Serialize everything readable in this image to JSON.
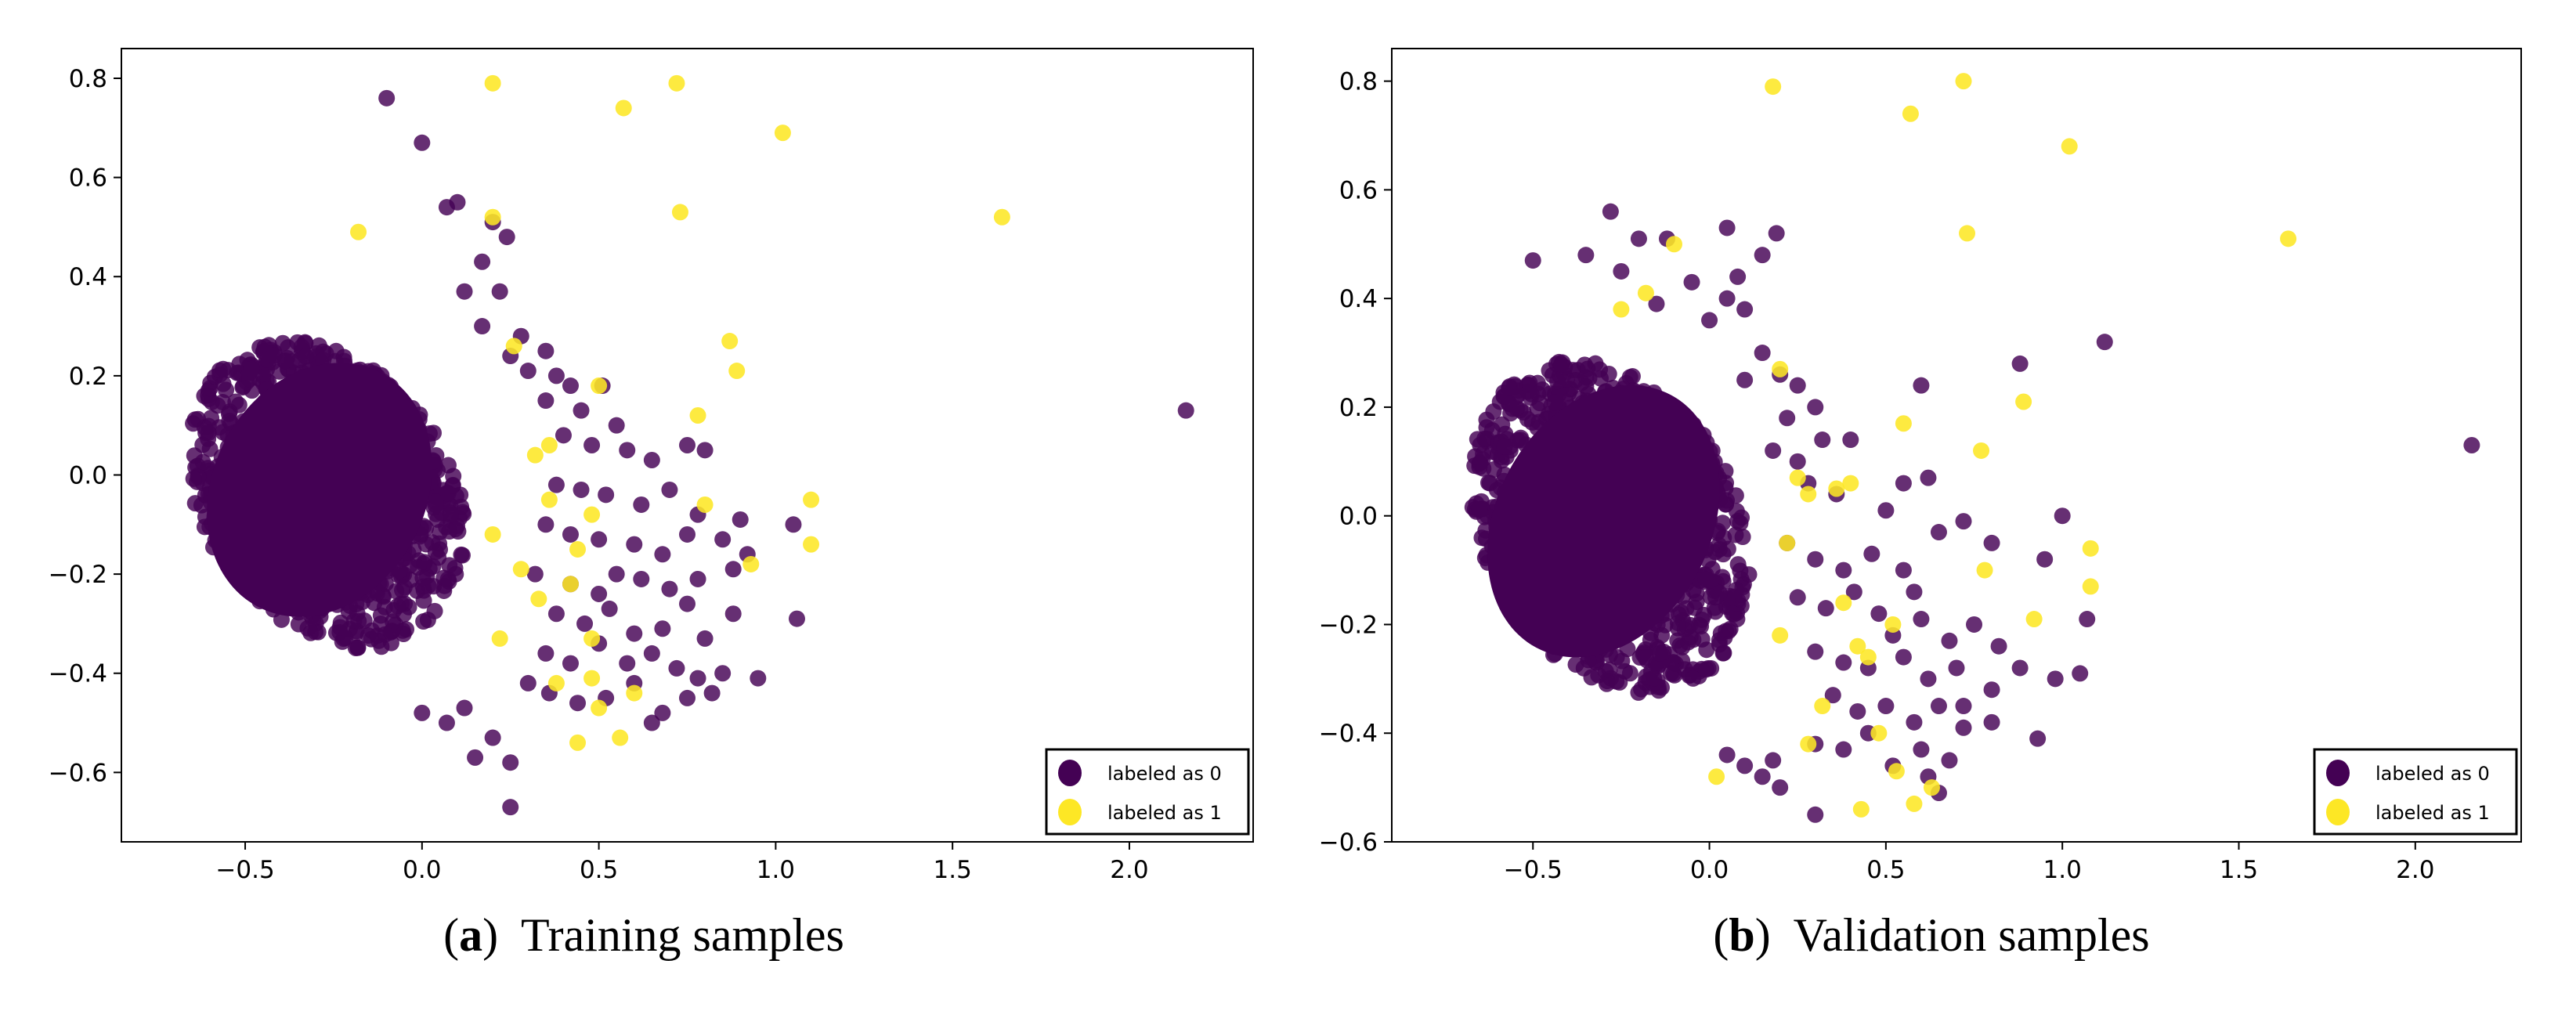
{
  "chart_data": [
    {
      "type": "scatter",
      "caption_label": "a",
      "caption_text": "Training samples",
      "xlim": [
        -0.85,
        2.35
      ],
      "ylim": [
        -0.74,
        0.86
      ],
      "xticks": [
        -0.5,
        0.0,
        0.5,
        1.0,
        1.5,
        2.0
      ],
      "yticks": [
        -0.6,
        -0.4,
        -0.2,
        0.0,
        0.2,
        0.4,
        0.6,
        0.8
      ],
      "tick_labels_x": [
        "−0.5",
        "0.0",
        "0.5",
        "1.0",
        "1.5",
        "2.0"
      ],
      "tick_labels_y": [
        "−0.6",
        "−0.4",
        "−0.2",
        "0.0",
        "0.2",
        "0.4",
        "0.6",
        "0.8"
      ],
      "legend_position": "lower-right",
      "series": [
        {
          "name": "labeled as 0",
          "color": "#440154",
          "cluster": {
            "center": [
              -0.27,
              -0.04
            ],
            "extent_x": [
              -0.75,
              0.22
            ],
            "extent_y": [
              -0.48,
              0.38
            ]
          },
          "points": [
            [
              -0.1,
              0.76
            ],
            [
              0.0,
              0.67
            ],
            [
              0.1,
              0.55
            ],
            [
              0.07,
              0.54
            ],
            [
              0.2,
              0.51
            ],
            [
              0.24,
              0.48
            ],
            [
              0.17,
              0.43
            ],
            [
              0.22,
              0.37
            ],
            [
              0.12,
              0.37
            ],
            [
              0.17,
              0.3
            ],
            [
              0.28,
              0.28
            ],
            [
              0.25,
              0.24
            ],
            [
              0.35,
              0.25
            ],
            [
              0.3,
              0.21
            ],
            [
              0.38,
              0.2
            ],
            [
              0.42,
              0.18
            ],
            [
              0.51,
              0.18
            ],
            [
              0.35,
              0.15
            ],
            [
              0.45,
              0.13
            ],
            [
              0.55,
              0.1
            ],
            [
              0.4,
              0.08
            ],
            [
              0.48,
              0.06
            ],
            [
              0.58,
              0.05
            ],
            [
              0.65,
              0.03
            ],
            [
              0.75,
              0.06
            ],
            [
              0.8,
              0.05
            ],
            [
              0.38,
              -0.02
            ],
            [
              0.45,
              -0.03
            ],
            [
              0.52,
              -0.04
            ],
            [
              0.62,
              -0.06
            ],
            [
              0.7,
              -0.03
            ],
            [
              0.78,
              -0.08
            ],
            [
              0.35,
              -0.1
            ],
            [
              0.42,
              -0.12
            ],
            [
              0.5,
              -0.13
            ],
            [
              0.6,
              -0.14
            ],
            [
              0.68,
              -0.16
            ],
            [
              0.75,
              -0.12
            ],
            [
              0.85,
              -0.13
            ],
            [
              0.9,
              -0.09
            ],
            [
              0.92,
              -0.16
            ],
            [
              0.88,
              -0.19
            ],
            [
              1.05,
              -0.1
            ],
            [
              0.32,
              -0.2
            ],
            [
              0.42,
              -0.22
            ],
            [
              0.5,
              -0.24
            ],
            [
              0.55,
              -0.2
            ],
            [
              0.62,
              -0.21
            ],
            [
              0.7,
              -0.23
            ],
            [
              0.78,
              -0.21
            ],
            [
              0.38,
              -0.28
            ],
            [
              0.46,
              -0.3
            ],
            [
              0.53,
              -0.27
            ],
            [
              0.6,
              -0.32
            ],
            [
              0.68,
              -0.31
            ],
            [
              0.75,
              -0.26
            ],
            [
              0.8,
              -0.33
            ],
            [
              0.88,
              -0.28
            ],
            [
              1.06,
              -0.29
            ],
            [
              0.35,
              -0.36
            ],
            [
              0.42,
              -0.38
            ],
            [
              0.5,
              -0.34
            ],
            [
              0.58,
              -0.38
            ],
            [
              0.65,
              -0.36
            ],
            [
              0.72,
              -0.39
            ],
            [
              0.78,
              -0.41
            ],
            [
              0.85,
              -0.4
            ],
            [
              0.95,
              -0.41
            ],
            [
              0.3,
              -0.42
            ],
            [
              0.36,
              -0.44
            ],
            [
              0.44,
              -0.46
            ],
            [
              0.52,
              -0.45
            ],
            [
              0.6,
              -0.42
            ],
            [
              0.68,
              -0.48
            ],
            [
              0.75,
              -0.45
            ],
            [
              0.82,
              -0.44
            ],
            [
              0.65,
              -0.5
            ],
            [
              0.2,
              -0.53
            ],
            [
              0.15,
              -0.57
            ],
            [
              0.25,
              -0.58
            ],
            [
              0.25,
              -0.67
            ],
            [
              0.07,
              -0.5
            ],
            [
              0.12,
              -0.47
            ],
            [
              0.0,
              -0.48
            ],
            [
              2.16,
              0.13
            ]
          ]
        },
        {
          "name": "labeled as 1",
          "color": "#fde725",
          "points": [
            [
              0.2,
              0.79
            ],
            [
              0.72,
              0.79
            ],
            [
              0.57,
              0.74
            ],
            [
              1.02,
              0.69
            ],
            [
              0.73,
              0.53
            ],
            [
              1.64,
              0.52
            ],
            [
              0.2,
              0.52
            ],
            [
              -0.18,
              0.49
            ],
            [
              0.87,
              0.27
            ],
            [
              0.89,
              0.21
            ],
            [
              0.78,
              0.12
            ],
            [
              0.5,
              0.18
            ],
            [
              0.26,
              0.26
            ],
            [
              0.32,
              0.04
            ],
            [
              0.36,
              0.06
            ],
            [
              0.36,
              -0.05
            ],
            [
              0.2,
              -0.12
            ],
            [
              0.48,
              -0.08
            ],
            [
              0.44,
              -0.15
            ],
            [
              1.1,
              -0.14
            ],
            [
              1.1,
              -0.05
            ],
            [
              0.8,
              -0.06
            ],
            [
              0.93,
              -0.18
            ],
            [
              0.28,
              -0.19
            ],
            [
              0.42,
              -0.22
            ],
            [
              0.33,
              -0.25
            ],
            [
              0.48,
              -0.33
            ],
            [
              0.38,
              -0.42
            ],
            [
              0.48,
              -0.41
            ],
            [
              0.5,
              -0.47
            ],
            [
              0.44,
              -0.54
            ],
            [
              0.56,
              -0.53
            ],
            [
              0.6,
              -0.44
            ],
            [
              0.22,
              -0.33
            ]
          ]
        }
      ]
    },
    {
      "type": "scatter",
      "caption_label": "b",
      "caption_text": "Validation samples",
      "xlim": [
        -0.9,
        2.3
      ],
      "ylim": [
        -0.6,
        0.86
      ],
      "xticks": [
        -0.5,
        0.0,
        0.5,
        1.0,
        1.5,
        2.0
      ],
      "yticks": [
        -0.6,
        -0.4,
        -0.2,
        0.0,
        0.2,
        0.4,
        0.6,
        0.8
      ],
      "tick_labels_x": [
        "−0.5",
        "0.0",
        "0.5",
        "1.0",
        "1.5",
        "2.0"
      ],
      "tick_labels_y": [
        "−0.6",
        "−0.4",
        "−0.2",
        "0.0",
        "0.2",
        "0.4",
        "0.6",
        "0.8"
      ],
      "legend_position": "lower-right",
      "series": [
        {
          "name": "labeled as 0",
          "color": "#440154",
          "cluster": {
            "center": [
              -0.28,
              -0.02
            ],
            "extent_x": [
              -0.8,
              0.18
            ],
            "extent_y": [
              -0.45,
              0.4
            ]
          },
          "points": [
            [
              -0.28,
              0.56
            ],
            [
              -0.2,
              0.51
            ],
            [
              -0.5,
              0.47
            ],
            [
              -0.12,
              0.51
            ],
            [
              0.05,
              0.53
            ],
            [
              0.19,
              0.52
            ],
            [
              0.15,
              0.48
            ],
            [
              -0.35,
              0.48
            ],
            [
              -0.25,
              0.45
            ],
            [
              0.08,
              0.44
            ],
            [
              -0.05,
              0.43
            ],
            [
              0.1,
              0.38
            ],
            [
              0.05,
              0.4
            ],
            [
              0.0,
              0.36
            ],
            [
              -0.15,
              0.39
            ],
            [
              0.15,
              0.3
            ],
            [
              0.2,
              0.26
            ],
            [
              0.25,
              0.24
            ],
            [
              0.1,
              0.25
            ],
            [
              0.3,
              0.2
            ],
            [
              0.22,
              0.18
            ],
            [
              0.6,
              0.24
            ],
            [
              0.18,
              0.12
            ],
            [
              0.25,
              0.1
            ],
            [
              0.32,
              0.14
            ],
            [
              0.4,
              0.14
            ],
            [
              0.28,
              0.06
            ],
            [
              0.36,
              0.04
            ],
            [
              0.55,
              0.06
            ],
            [
              0.62,
              0.07
            ],
            [
              0.5,
              0.01
            ],
            [
              0.65,
              -0.03
            ],
            [
              0.72,
              -0.01
            ],
            [
              0.8,
              -0.05
            ],
            [
              0.22,
              -0.05
            ],
            [
              0.3,
              -0.08
            ],
            [
              0.38,
              -0.1
            ],
            [
              0.46,
              -0.07
            ],
            [
              0.55,
              -0.1
            ],
            [
              0.58,
              -0.14
            ],
            [
              0.25,
              -0.15
            ],
            [
              0.33,
              -0.17
            ],
            [
              0.41,
              -0.14
            ],
            [
              0.48,
              -0.18
            ],
            [
              0.52,
              -0.22
            ],
            [
              0.6,
              -0.19
            ],
            [
              0.68,
              -0.23
            ],
            [
              0.75,
              -0.2
            ],
            [
              0.82,
              -0.24
            ],
            [
              0.95,
              -0.08
            ],
            [
              1.0,
              0.0
            ],
            [
              1.07,
              -0.19
            ],
            [
              0.3,
              -0.25
            ],
            [
              0.38,
              -0.27
            ],
            [
              0.45,
              -0.28
            ],
            [
              0.55,
              -0.26
            ],
            [
              0.62,
              -0.3
            ],
            [
              0.7,
              -0.28
            ],
            [
              0.8,
              -0.32
            ],
            [
              0.88,
              -0.28
            ],
            [
              0.98,
              -0.3
            ],
            [
              1.05,
              -0.29
            ],
            [
              0.35,
              -0.33
            ],
            [
              0.42,
              -0.36
            ],
            [
              0.5,
              -0.35
            ],
            [
              0.58,
              -0.38
            ],
            [
              0.65,
              -0.35
            ],
            [
              0.72,
              -0.39
            ],
            [
              0.8,
              -0.38
            ],
            [
              0.3,
              -0.42
            ],
            [
              0.38,
              -0.43
            ],
            [
              0.45,
              -0.4
            ],
            [
              0.52,
              -0.46
            ],
            [
              0.6,
              -0.43
            ],
            [
              0.68,
              -0.45
            ],
            [
              0.72,
              -0.35
            ],
            [
              0.93,
              -0.41
            ],
            [
              0.1,
              -0.46
            ],
            [
              0.15,
              -0.48
            ],
            [
              0.05,
              -0.44
            ],
            [
              0.62,
              -0.48
            ],
            [
              0.65,
              -0.51
            ],
            [
              0.3,
              -0.55
            ],
            [
              0.2,
              -0.5
            ],
            [
              0.18,
              -0.45
            ],
            [
              1.12,
              0.32
            ],
            [
              0.88,
              0.28
            ],
            [
              2.16,
              0.13
            ]
          ]
        },
        {
          "name": "labeled as 1",
          "color": "#fde725",
          "points": [
            [
              0.18,
              0.79
            ],
            [
              0.72,
              0.8
            ],
            [
              0.57,
              0.74
            ],
            [
              1.02,
              0.68
            ],
            [
              0.73,
              0.52
            ],
            [
              1.64,
              0.51
            ],
            [
              -0.1,
              0.5
            ],
            [
              -0.18,
              0.41
            ],
            [
              -0.25,
              0.38
            ],
            [
              0.2,
              0.27
            ],
            [
              0.55,
              0.17
            ],
            [
              0.89,
              0.21
            ],
            [
              0.77,
              0.12
            ],
            [
              0.25,
              0.07
            ],
            [
              0.28,
              0.04
            ],
            [
              0.36,
              0.05
            ],
            [
              0.4,
              0.06
            ],
            [
              0.22,
              -0.05
            ],
            [
              1.08,
              -0.06
            ],
            [
              1.08,
              -0.13
            ],
            [
              0.78,
              -0.1
            ],
            [
              0.92,
              -0.19
            ],
            [
              0.38,
              -0.16
            ],
            [
              0.42,
              -0.24
            ],
            [
              0.52,
              -0.2
            ],
            [
              0.2,
              -0.22
            ],
            [
              0.45,
              -0.26
            ],
            [
              0.32,
              -0.35
            ],
            [
              0.48,
              -0.4
            ],
            [
              0.53,
              -0.47
            ],
            [
              0.43,
              -0.54
            ],
            [
              0.58,
              -0.53
            ],
            [
              0.63,
              -0.5
            ],
            [
              0.02,
              -0.48
            ],
            [
              0.28,
              -0.42
            ]
          ]
        }
      ]
    }
  ]
}
